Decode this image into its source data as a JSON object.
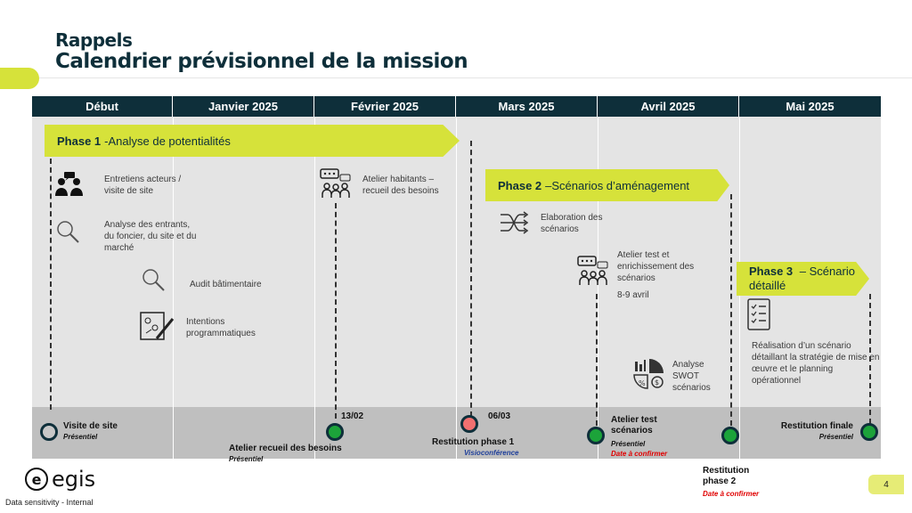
{
  "header": {
    "line1": "Rappels",
    "line2": "Calendrier prévisionnel de la mission"
  },
  "columns": [
    "Début",
    "Janvier 2025",
    "Février 2025",
    "Mars 2025",
    "Avril 2025",
    "Mai 2025"
  ],
  "phases": {
    "p1": {
      "label": "Phase 1",
      "sep": " - ",
      "title": "Analyse de potentialités"
    },
    "p2": {
      "label": "Phase 2",
      "sep": " – ",
      "title": "Scénarios d’aménagement"
    },
    "p3": {
      "label": "Phase 3",
      "sep": " – ",
      "title": "Scénario détaillé"
    }
  },
  "activities": {
    "entretiens": "Entretiens acteurs / visite de site",
    "analyse_entrants": "Analyse des entrants, du foncier, du site et du marché",
    "audit": "Audit bâtimentaire",
    "intentions": "Intentions programmatiques",
    "atelier_habitants": "Atelier habitants – recueil des besoins",
    "elaboration": "Elaboration des scénarios",
    "atelier_test": "Atelier test et enrichissement des scénarios",
    "atelier_test_date": "8-9 avril",
    "analyse_swot": "Analyse SWOT scénarios",
    "realisation": "Réalisation d’un scénario détaillant la stratégie de mise en œuvre et  le planning opérationnel"
  },
  "milestones": {
    "visite": {
      "label": "Visite de site",
      "sub": "Présentiel"
    },
    "atelier_recueil": {
      "date": "13/02",
      "label": "Atelier recueil des besoins",
      "sub": "Présentiel"
    },
    "restitution1": {
      "date": "06/03",
      "label": "Restitution phase 1",
      "sub": "Visioconférence"
    },
    "atelier_test": {
      "label": "Atelier test scénarios",
      "sub": "Présentiel",
      "sub2": "Date à confirmer"
    },
    "restitution2": {
      "label": "Restitution phase 2",
      "sub": "Date à confirmer"
    },
    "restitution_finale": {
      "label": "Restitution finale",
      "sub": "Présentiel"
    }
  },
  "footer": {
    "logo_mark": "e",
    "logo_text": "egis",
    "sensitivity": "Data sensitivity - Internal",
    "page": "4"
  },
  "colors": {
    "navy": "#0e2f3a",
    "lime": "#d6e23a",
    "green_dot": "#1ca33a",
    "red_text": "#e00000",
    "blue_text": "#1f3f9a"
  }
}
